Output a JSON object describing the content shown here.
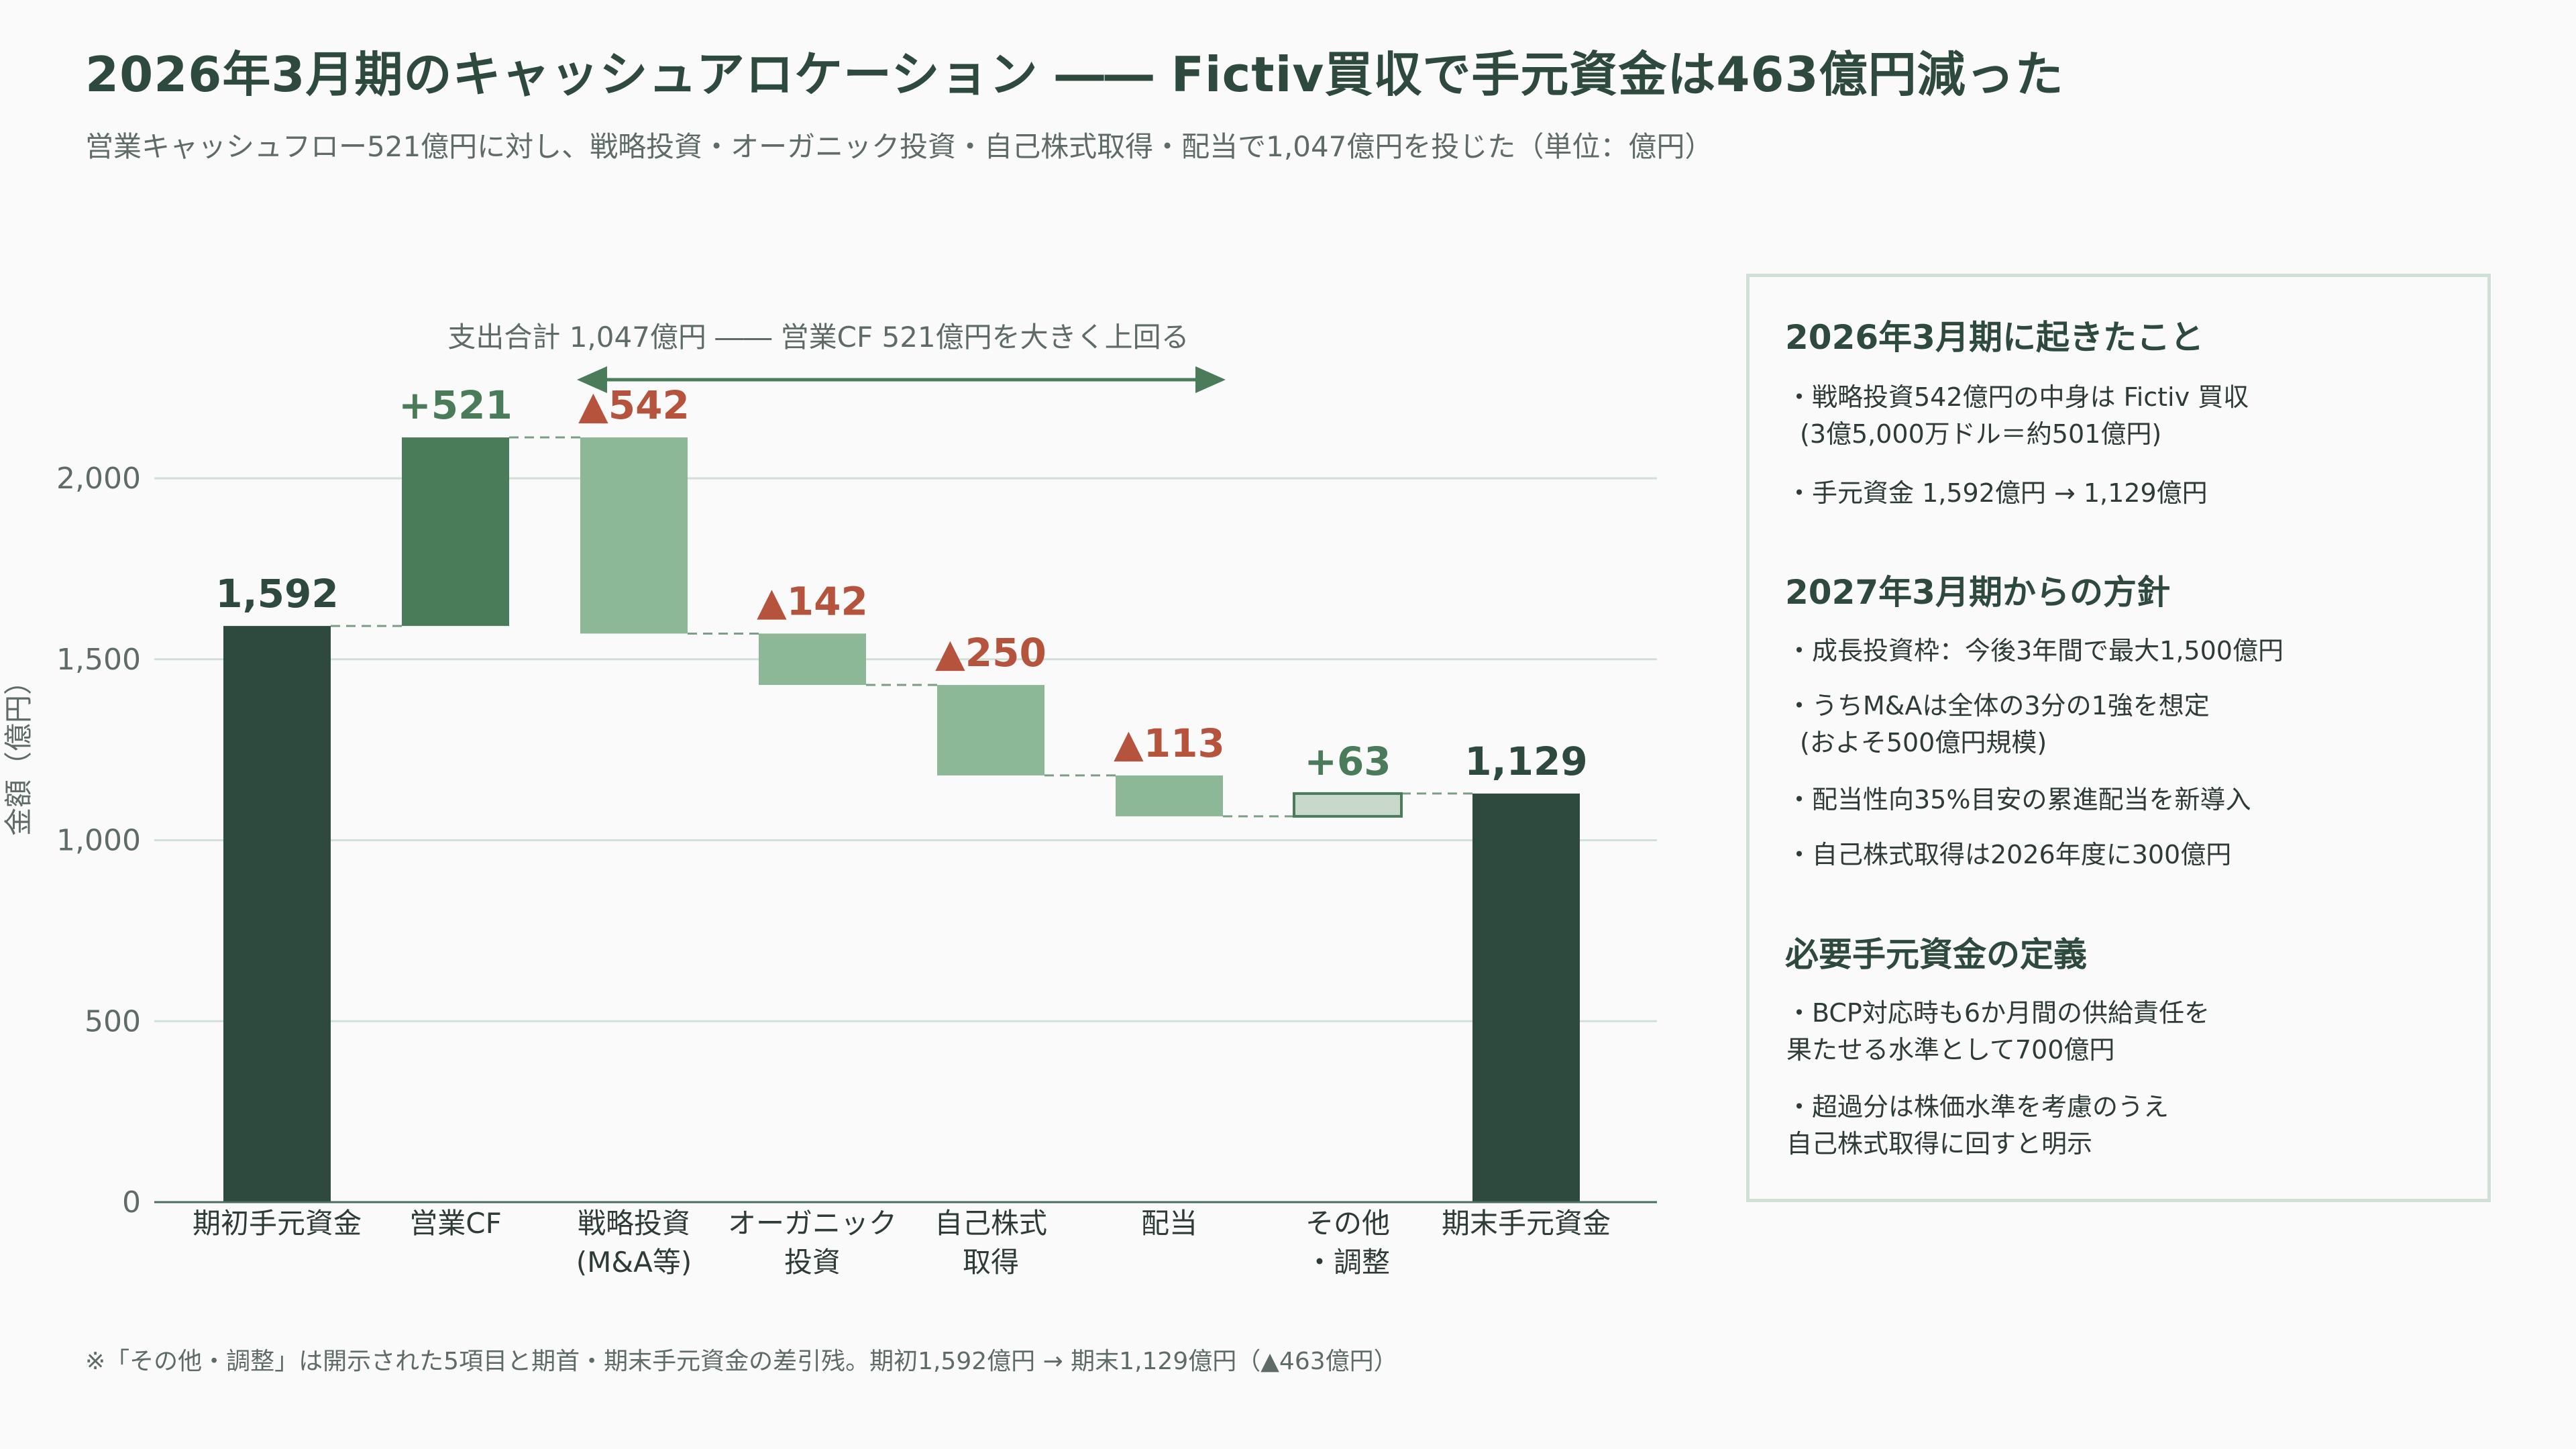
{
  "title": "2026年3月期のキャッシュアロケーション ―― Fictiv買収で手元資金は463億円減った",
  "subtitle": "営業キャッシュフロー521億円に対し、戦略投資・オーガニック投資・自己株式取得・配当で1,047億円を投じた（単位：億円）",
  "chart_data": {
    "type": "bar",
    "subtype": "waterfall",
    "ylabel": "金額（億円）",
    "ylim": [
      0,
      2000
    ],
    "yticks": [
      "0",
      "500",
      "1,000",
      "1,500",
      "2,000"
    ],
    "ytick_values": [
      0,
      500,
      1000,
      1500,
      2000
    ],
    "grid": true,
    "categories": [
      [
        "期初手元資金"
      ],
      [
        "営業CF"
      ],
      [
        "戦略投資",
        "(M&A等)"
      ],
      [
        "オーガニック",
        "投資"
      ],
      [
        "自己株式",
        "取得"
      ],
      [
        "配当"
      ],
      [
        "その他",
        "・調整"
      ],
      [
        "期末手元資金"
      ]
    ],
    "bars": [
      {
        "kind": "total",
        "start": 0,
        "end": 1592,
        "label": "1,592"
      },
      {
        "kind": "increase",
        "start": 1592,
        "end": 2113,
        "label": "+521"
      },
      {
        "kind": "decrease",
        "start": 2113,
        "end": 1571,
        "label": "▲542"
      },
      {
        "kind": "decrease",
        "start": 1571,
        "end": 1429,
        "label": "▲142"
      },
      {
        "kind": "decrease",
        "start": 1429,
        "end": 1179,
        "label": "▲250"
      },
      {
        "kind": "decrease",
        "start": 1179,
        "end": 1066,
        "label": "▲113"
      },
      {
        "kind": "adjust",
        "start": 1066,
        "end": 1129,
        "label": "+63"
      },
      {
        "kind": "total",
        "start": 0,
        "end": 1129,
        "label": "1,129"
      }
    ],
    "annotation": "支出合計 1,047億円 ―― 営業CF 521億円を大きく上回る",
    "colors": {
      "total": "#2e4a3e",
      "increase": "#4a7c59",
      "decrease": "#8cb897",
      "adjust": "#c8d9cc",
      "adjust_border": "#4a7c59",
      "label_total": "#2e4a3e",
      "label_increase": "#4a7c59",
      "label_decrease": "#b5533c",
      "connector": "#7a9e86",
      "grid": "#cfe0d6",
      "axis_text": "#5f6b66"
    }
  },
  "panel": {
    "section1_title": "2026年3月期に起きたこと",
    "s1_b1_l1": "・戦略投資542億円の中身は Fictiv 買収",
    "s1_b1_l2": "(3億5,000万ドル＝約501億円)",
    "s1_b2": "・手元資金 1,592億円 → 1,129億円",
    "section2_title": "2027年3月期からの方針",
    "s2_b1": "・成長投資枠：今後3年間で最大1,500億円",
    "s2_b2_l1": "・うちM&Aは全体の3分の1強を想定",
    "s2_b2_l2": "(およそ500億円規模)",
    "s2_b3": "・配当性向35%目安の累進配当を新導入",
    "s2_b4": "・自己株式取得は2026年度に300億円",
    "section3_title": "必要手元資金の定義",
    "s3_b1_l1": "・BCP対応時も6か月間の供給責任を",
    "s3_b1_l2": "果たせる水準として700億円",
    "s3_b2_l1": "・超過分は株価水準を考慮のうえ",
    "s3_b2_l2": "自己株式取得に回すと明示"
  },
  "footnote": "※「その他・調整」は開示された5項目と期首・期末手元資金の差引残。期初1,592億円 → 期末1,129億円（▲463億円）"
}
